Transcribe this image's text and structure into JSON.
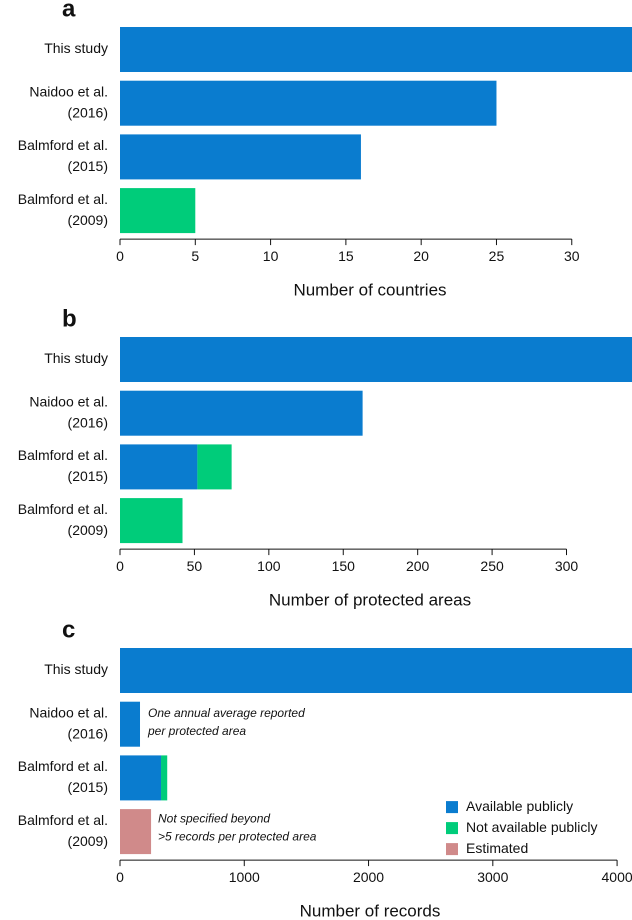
{
  "chart_data": [
    {
      "type": "bar",
      "orientation": "horizontal",
      "stacked": true,
      "title": "a",
      "categories": [
        [
          "This study"
        ],
        [
          "Naidoo et al.",
          "(2016)"
        ],
        [
          "Balmford et al.",
          "(2015)"
        ],
        [
          "Balmford et al.",
          "(2009)"
        ]
      ],
      "series": [
        {
          "color": "#0a7ccf",
          "values": [
            34,
            25,
            16,
            null
          ]
        },
        {
          "color": "#00cc7a",
          "values": [
            null,
            null,
            null,
            5
          ]
        }
      ],
      "xlabel": "Number of countries",
      "xlim": [
        0,
        34
      ],
      "xticks": [
        0,
        5,
        10,
        15,
        20,
        25,
        30
      ]
    },
    {
      "type": "bar",
      "orientation": "horizontal",
      "stacked": true,
      "title": "b",
      "categories": [
        [
          "This study"
        ],
        [
          "Naidoo et al.",
          "(2016)"
        ],
        [
          "Balmford et al.",
          "(2015)"
        ],
        [
          "Balmford et al.",
          "(2009)"
        ]
      ],
      "series": [
        {
          "color": "#0a7ccf",
          "values": [
            344,
            163,
            52,
            null
          ]
        },
        {
          "color": "#00cc7a",
          "values": [
            null,
            null,
            23,
            42
          ]
        }
      ],
      "xlabel": "Number of protected areas",
      "xlim": [
        0,
        344
      ],
      "xticks": [
        0,
        50,
        100,
        150,
        200,
        250,
        300
      ]
    },
    {
      "type": "bar",
      "orientation": "horizontal",
      "stacked": true,
      "title": "c",
      "categories": [
        [
          "This study"
        ],
        [
          "Naidoo et al.",
          "(2016)"
        ],
        [
          "Balmford et al.",
          "(2015)"
        ],
        [
          "Balmford et al.",
          "(2009)"
        ]
      ],
      "series": [
        {
          "name": "Available publicly",
          "color": "#0a7ccf",
          "values": [
            4120,
            161,
            330,
            null
          ]
        },
        {
          "name": "Not  available publicly",
          "color": "#00cc7a",
          "values": [
            null,
            null,
            50,
            null
          ]
        },
        {
          "name": "Estimated",
          "color": "#d08a8a",
          "values": [
            null,
            null,
            null,
            250
          ]
        }
      ],
      "annotations": [
        [
          "One annual average reported",
          "per protected area"
        ],
        [
          "Not specified beyond",
          ">5 records per protected area"
        ]
      ],
      "legend": "lower right",
      "xlabel": "Number of records",
      "xlim": [
        0,
        4120
      ],
      "xticks": [
        0,
        1000,
        2000,
        3000,
        4000
      ]
    }
  ]
}
